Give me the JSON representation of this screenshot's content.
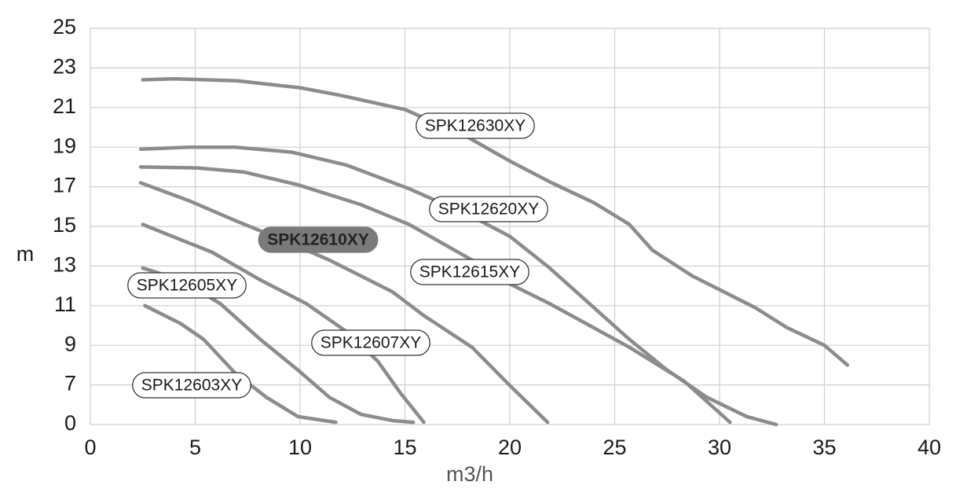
{
  "chart_data": {
    "type": "line",
    "x_label": "m3/h",
    "y_label": "m",
    "xlim": [
      0,
      40
    ],
    "xticks": [
      0,
      5,
      10,
      15,
      20,
      25,
      30,
      35,
      40
    ],
    "ylim": [
      0,
      25
    ],
    "yticks": [
      0,
      7,
      9,
      11,
      13,
      15,
      17,
      19,
      21,
      23,
      25
    ],
    "grid": true,
    "series": [
      {
        "name": "SPK12630XY",
        "color": "#8c8c8c",
        "x": [
          2.5,
          4,
          7,
          10,
          12,
          15,
          18,
          20,
          22,
          24,
          25.7,
          26.8,
          28.7,
          30.2,
          31.7,
          33.2,
          35,
          36.1
        ],
        "values": [
          22.4,
          22.45,
          22.35,
          22.0,
          21.6,
          20.9,
          19.5,
          18.3,
          17.2,
          16.2,
          15.1,
          13.8,
          12.5,
          11.7,
          10.9,
          9.9,
          9.0,
          8.0
        ]
      },
      {
        "name": "SPK12620XY",
        "color": "#8c8c8c",
        "x": [
          2.4,
          4.7,
          6.9,
          9.6,
          12.2,
          15.2,
          18.2,
          20,
          21.9,
          23.8,
          25.7,
          27.5,
          29.4,
          31.3,
          32.7
        ],
        "values": [
          18.9,
          19.0,
          19.0,
          18.75,
          18.1,
          16.9,
          15.5,
          14.5,
          12.9,
          11.1,
          9.3,
          7.75,
          4.8,
          1.4,
          0
        ]
      },
      {
        "name": "SPK12615XY",
        "color": "#8c8c8c",
        "x": [
          2.4,
          5.1,
          7.3,
          9.9,
          12.9,
          15.2,
          18.2,
          20,
          21.9,
          25.7,
          28.3,
          30.5
        ],
        "values": [
          18.0,
          17.95,
          17.75,
          17.1,
          16.1,
          15.1,
          13.3,
          12.1,
          11.1,
          8.9,
          7.2,
          0.4
        ]
      },
      {
        "name": "SPK12610XY",
        "color": "#8c8c8c",
        "x": [
          2.4,
          4.7,
          6.9,
          9.2,
          11.4,
          14.4,
          15.9,
          18.2,
          20,
          21.8
        ],
        "values": [
          17.2,
          16.3,
          15.3,
          14.3,
          13.3,
          11.7,
          10.5,
          8.9,
          6.9,
          0.4
        ]
      },
      {
        "name": "SPK12607XY",
        "color": "#8c8c8c",
        "x": [
          2.5,
          3.9,
          5.8,
          8.1,
          10.3,
          12.2,
          13.7,
          14.8,
          15.9
        ],
        "values": [
          15.1,
          14.5,
          13.7,
          12.3,
          11.1,
          9.7,
          8.2,
          5.5,
          0.4
        ]
      },
      {
        "name": "SPK12605XY",
        "color": "#8c8c8c",
        "x": [
          2.5,
          4.3,
          6.2,
          8.1,
          9.9,
          11.4,
          12.9,
          14.4,
          15.4
        ],
        "values": [
          12.9,
          12.3,
          11.1,
          9.3,
          7.75,
          4.8,
          1.8,
          0.7,
          0.4
        ]
      },
      {
        "name": "SPK12603XY",
        "color": "#8c8c8c",
        "x": [
          2.6,
          4.3,
          5.4,
          6.9,
          8.4,
          9.9,
          11.7
        ],
        "values": [
          11.0,
          10.1,
          9.3,
          7.6,
          4.8,
          1.4,
          0.4
        ]
      }
    ]
  }
}
